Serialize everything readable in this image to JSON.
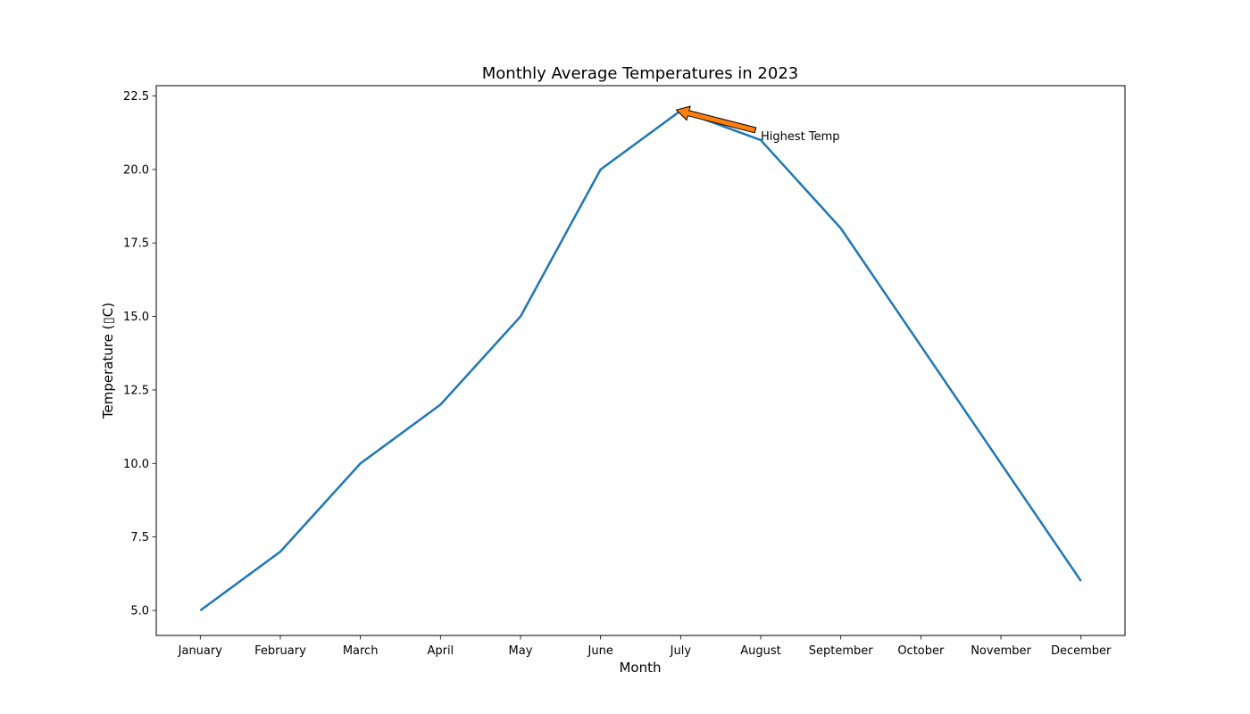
{
  "chart_data": {
    "type": "line",
    "title": "Monthly Average Temperatures in 2023",
    "xlabel": "Month",
    "ylabel": "Temperature (▯C)",
    "categories": [
      "January",
      "February",
      "March",
      "April",
      "May",
      "June",
      "July",
      "August",
      "September",
      "October",
      "November",
      "December"
    ],
    "series": [
      {
        "values": [
          5,
          7,
          10,
          12,
          15,
          20,
          22,
          21,
          18,
          14,
          10,
          6
        ],
        "color": "#1f77b4"
      }
    ],
    "ylim": [
      4.15,
      22.85
    ],
    "yticks": [
      5.0,
      7.5,
      10.0,
      12.5,
      15.0,
      17.5,
      20.0,
      22.5
    ],
    "ytick_labels": [
      "5.0",
      "7.5",
      "10.0",
      "12.5",
      "15.0",
      "17.5",
      "20.0",
      "22.5"
    ],
    "grid": false,
    "annotation": {
      "text": "Highest Temp",
      "target_category": "July",
      "target_value": 22,
      "text_category": "August",
      "text_value": 21,
      "arrow_color": "#ff7f0e"
    }
  }
}
